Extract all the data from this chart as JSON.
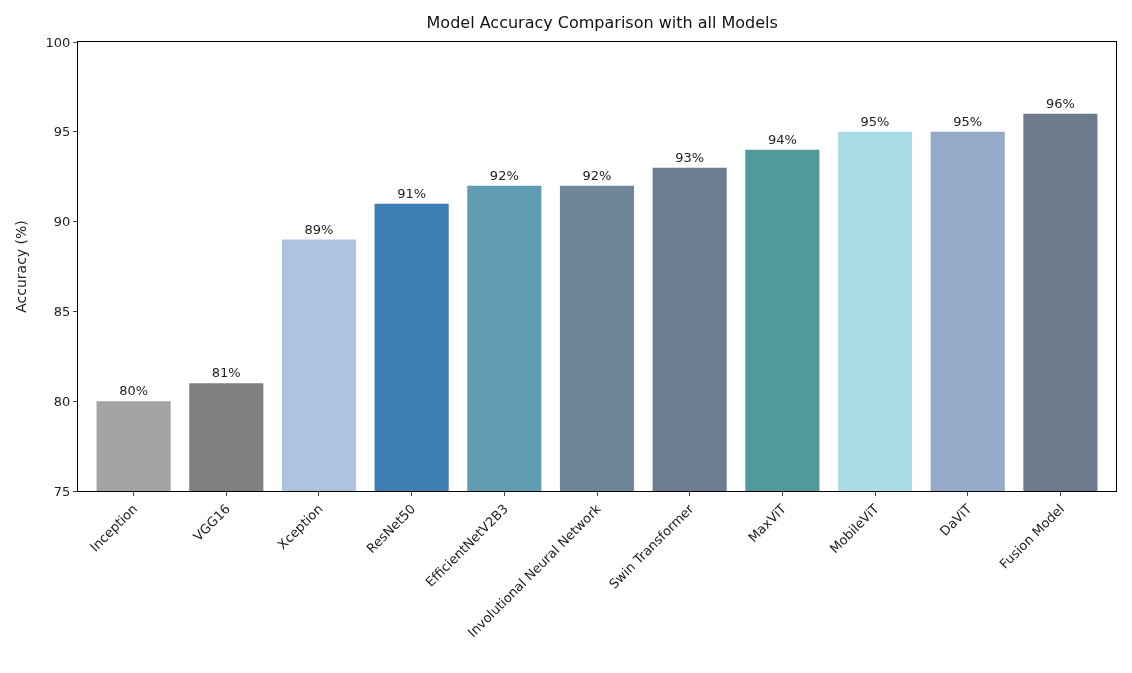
{
  "chart_data": {
    "type": "bar",
    "title": "Model Accuracy Comparison with all Models",
    "ylabel": "Accuracy (%)",
    "categories": [
      "Inception",
      "VGG16",
      "Xception",
      "ResNet50",
      "EfficientNetV2B3",
      "Involutional Neural Network",
      "Swin Transformer",
      "MaxViT",
      "MobileViT",
      "DaViT",
      "Fusion Model"
    ],
    "values": [
      80,
      81,
      89,
      91,
      92,
      92,
      93,
      94,
      95,
      95,
      96
    ],
    "colors": [
      "#a3a3a3",
      "#7f7f7f",
      "#adc3e0",
      "#3f7db5",
      "#609db5",
      "#6f8599",
      "#6b7d8e",
      "#4f9a9a",
      "#a9dde5",
      "#94aac8",
      "#6b7b8c"
    ],
    "value_labels": [
      "80%",
      "81%",
      "89%",
      "91%",
      "92%",
      "92%",
      "93%",
      "94%",
      "95%",
      "95%",
      "96%"
    ],
    "ylim": [
      75,
      100
    ],
    "yticks": [
      75,
      80,
      85,
      90,
      95,
      100
    ]
  }
}
